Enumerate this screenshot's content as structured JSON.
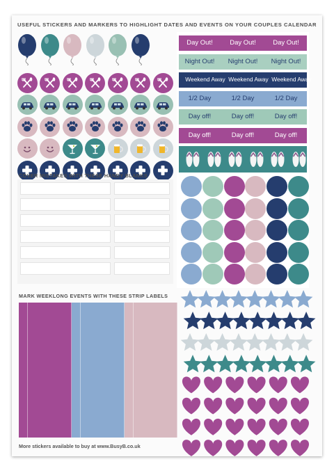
{
  "header": "USEFUL STICKERS AND MARKERS TO HIGHLIGHT DATES AND EVENTS ON YOUR COUPLES CALENDAR",
  "blanks_title": "COVER MISTAKES WITH THESE HANDY BLANKS",
  "strips_title": "MARK WEEKLONG EVENTS WITH THESE STRIP LABELS",
  "footer": "More stickers available to buy at www.BusyB.co.uk",
  "colors": {
    "navy": "#253d6e",
    "teal": "#3d8a8a",
    "pink": "#d8b9c0",
    "silver": "#cdd6da",
    "sage": "#99c0b3",
    "magenta": "#a24a94",
    "sky": "#8aaad0",
    "mint": "#a0c8b8"
  },
  "balloons": [
    "navy",
    "teal",
    "pink",
    "silver",
    "sage",
    "navy"
  ],
  "icon_rows": [
    {
      "name": "cutlery-icon",
      "bg": "magenta"
    },
    {
      "name": "car-icon",
      "bg": "sage"
    },
    {
      "name": "paw-icon",
      "bg": "pink"
    },
    {
      "name": "mixed",
      "bg": "pink"
    },
    {
      "name": "plus-icon",
      "bg": "navy"
    }
  ],
  "day_labels": [
    {
      "text": "Day Out!",
      "bg": "#a24a94",
      "fg": "#ffffff"
    },
    {
      "text": "Night Out!",
      "bg": "#a9cfc0",
      "fg": "#253d6e"
    },
    {
      "text": "Weekend Away",
      "bg": "#253d6e",
      "fg": "#ffffff"
    },
    {
      "text": "1/2 Day",
      "bg": "#8aaad0",
      "fg": "#253d6e"
    },
    {
      "text": "Day off!",
      "bg": "#9fc9b8",
      "fg": "#253d6e"
    },
    {
      "text": "Day off!",
      "bg": "#a24a94",
      "fg": "#ffffff"
    }
  ],
  "big_circle_columns": [
    "#8aaad0",
    "#9fc9b8",
    "#a24a94",
    "#d8b9c0",
    "#253d6e",
    "#3d8a8a"
  ],
  "star_rows": [
    "#8aaad0",
    "#253d6e",
    "#cdd6da",
    "#3d8a8a"
  ],
  "heart_color": "#a24a94",
  "strip_groups": [
    "#a24a94",
    "#8aaad0",
    "#d8b9c0"
  ]
}
